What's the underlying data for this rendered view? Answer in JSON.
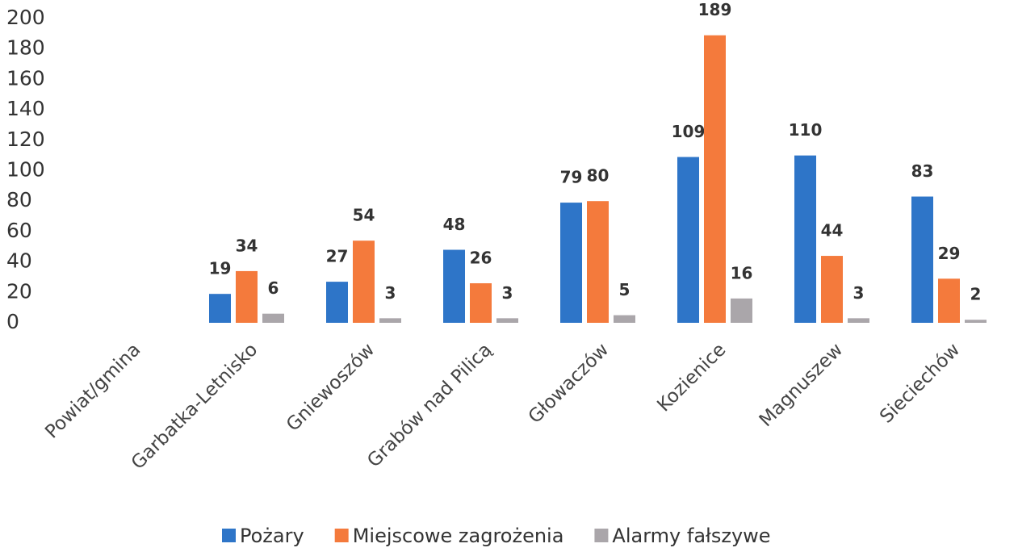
{
  "chart_data": {
    "type": "bar",
    "categories": [
      "Powiat/gmina",
      "Garbatka-Letnisko",
      "Gniewoszów",
      "Grabów nad Pilicą",
      "Głowaczów",
      "Kozienice",
      "Magnuszew",
      "Sieciechów"
    ],
    "series": [
      {
        "name": "Pożary",
        "color": "#2e75c8",
        "values": [
          null,
          19,
          27,
          48,
          79,
          109,
          110,
          83
        ]
      },
      {
        "name": "Miejscowe zagrożenia",
        "color": "#f47a3c",
        "values": [
          null,
          34,
          54,
          26,
          80,
          189,
          44,
          29
        ]
      },
      {
        "name": "Alarmy fałszywe",
        "color": "#aaa6aa",
        "values": [
          null,
          6,
          3,
          3,
          5,
          16,
          3,
          2
        ]
      }
    ],
    "ylim": [
      0,
      200
    ],
    "yticks": [
      0,
      20,
      40,
      60,
      80,
      100,
      120,
      140,
      160,
      180,
      200
    ],
    "grid": false,
    "legend": "bottom"
  }
}
